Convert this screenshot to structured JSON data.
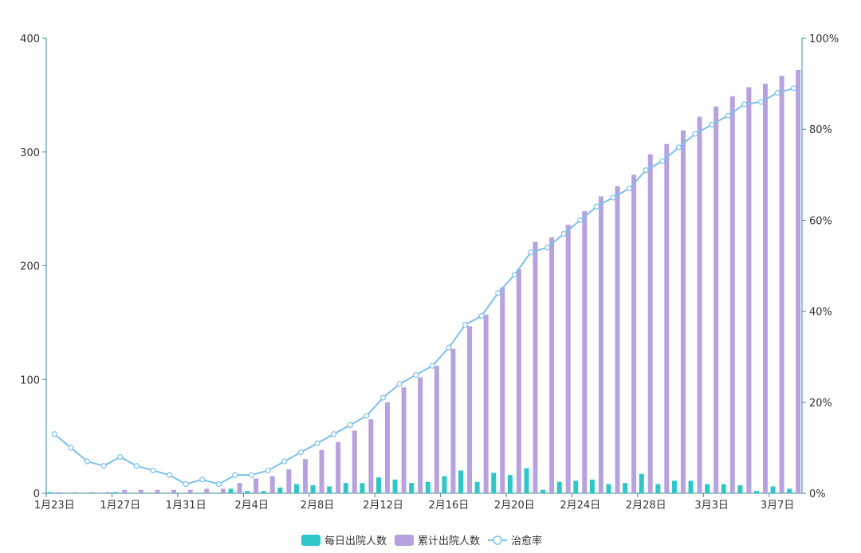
{
  "chart_data": {
    "type": "bar",
    "categories": [
      "1月23日",
      "1月24日",
      "1月25日",
      "1月26日",
      "1月27日",
      "1月28日",
      "1月29日",
      "1月30日",
      "1月31日",
      "2月1日",
      "2月2日",
      "2月3日",
      "2月4日",
      "2月5日",
      "2月6日",
      "2月7日",
      "2月8日",
      "2月9日",
      "2月10日",
      "2月11日",
      "2月12日",
      "2月13日",
      "2月14日",
      "2月15日",
      "2月16日",
      "2月17日",
      "2月18日",
      "2月19日",
      "2月20日",
      "2月21日",
      "2月22日",
      "2月23日",
      "2月24日",
      "2月25日",
      "2月26日",
      "2月27日",
      "2月28日",
      "2月29日",
      "3月1日",
      "3月2日",
      "3月3日",
      "3月4日",
      "3月5日",
      "3月6日",
      "3月7日",
      "3月8日"
    ],
    "tick_labels": [
      "1月23日",
      "1月27日",
      "1月31日",
      "2月4日",
      "2月8日",
      "2月12日",
      "2月16日",
      "2月20日",
      "2月24日",
      "2月28日",
      "3月3日",
      "3月7日"
    ],
    "series": [
      {
        "name": "每日出院人数",
        "type": "bar",
        "axis": "left",
        "color": "#2ec7c9",
        "values": [
          1,
          0,
          0,
          0,
          1,
          0,
          0,
          0,
          0,
          0,
          0,
          4,
          2,
          2,
          5,
          8,
          7,
          6,
          9,
          9,
          14,
          12,
          9,
          10,
          15,
          20,
          10,
          18,
          16,
          22,
          3,
          10,
          11,
          12,
          8,
          9,
          17,
          8,
          11,
          11,
          8,
          8,
          7,
          2,
          6,
          4
        ]
      },
      {
        "name": "累计出院人数",
        "type": "bar",
        "axis": "left",
        "color": "#b6a2de",
        "values": [
          1,
          1,
          1,
          1,
          3,
          3,
          3,
          3,
          3,
          4,
          4,
          9,
          13,
          15,
          21,
          30,
          38,
          45,
          55,
          65,
          80,
          93,
          102,
          112,
          127,
          147,
          157,
          181,
          197,
          221,
          225,
          236,
          248,
          261,
          270,
          280,
          298,
          307,
          319,
          331,
          340,
          349,
          357,
          360,
          367,
          372
        ]
      },
      {
        "name": "治愈率",
        "type": "line",
        "axis": "right",
        "color": "#7cc0ec",
        "values": [
          13,
          10,
          7,
          6,
          8,
          6,
          5,
          4,
          2,
          3,
          2,
          4,
          4,
          5,
          7,
          9,
          11,
          13,
          15,
          17,
          21,
          24,
          26,
          28,
          32,
          37,
          39,
          44,
          48,
          53,
          54,
          57,
          60,
          63,
          65,
          67,
          71,
          73,
          76,
          79,
          81,
          83,
          85.5,
          86,
          88,
          89
        ]
      }
    ],
    "yleft": {
      "range": [
        0,
        400
      ],
      "ticks": [
        "0",
        "100",
        "200",
        "300",
        "400"
      ]
    },
    "yright": {
      "range": [
        0,
        100
      ],
      "ticks": [
        "0%",
        "20%",
        "40%",
        "60%",
        "80%",
        "100%"
      ]
    },
    "grid": false,
    "legend_position": "bottom"
  }
}
